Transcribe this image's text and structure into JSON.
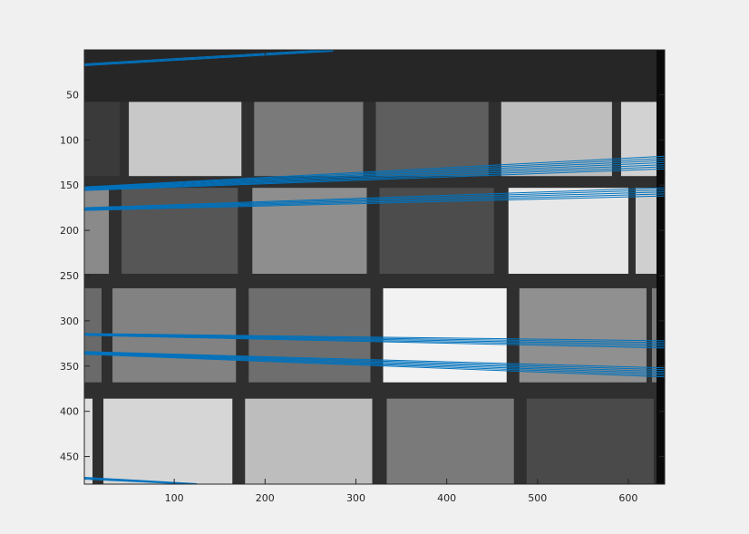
{
  "window": {
    "background": "#f0f0f0"
  },
  "chart_data": {
    "type": "image",
    "description_kind": "grayscale image with overlaid line segments",
    "xlim": [
      1,
      640
    ],
    "ylim": [
      0.5,
      480.5
    ],
    "y_reversed": true,
    "x_ticks": [
      100,
      200,
      300,
      400,
      500,
      600
    ],
    "x_tick_labels": [
      "100",
      "200",
      "300",
      "400",
      "500",
      "600"
    ],
    "y_ticks": [
      50,
      100,
      150,
      200,
      250,
      300,
      350,
      400,
      450
    ],
    "y_tick_labels": [
      "50",
      "100",
      "150",
      "200",
      "250",
      "300",
      "350",
      "400",
      "450"
    ],
    "line_color": "#0072bd",
    "image": {
      "top_band": {
        "y_range": [
          0,
          58
        ],
        "gray": "#262626"
      },
      "grid_background_gray": "#2f2f2f",
      "right_edge_bar": {
        "x_range": [
          631,
          640
        ],
        "gray": "#0a0a0a"
      },
      "patch_rows": [
        {
          "y_range": [
            58,
            140
          ],
          "patches": [
            {
              "x": [
                0,
                40
              ],
              "gray": "#3a3a3a"
            },
            {
              "x": [
                50,
                174
              ],
              "gray": "#c8c8c8"
            },
            {
              "x": [
                188,
                308
              ],
              "gray": "#7a7a7a"
            },
            {
              "x": [
                322,
                446
              ],
              "gray": "#5e5e5e"
            },
            {
              "x": [
                460,
                582
              ],
              "gray": "#bdbdbd"
            },
            {
              "x": [
                592,
                632
              ],
              "gray": "#d2d2d2"
            }
          ]
        },
        {
          "y_range": [
            153,
            248
          ],
          "patches": [
            {
              "x": [
                0,
                28
              ],
              "gray": "#8a8a8a"
            },
            {
              "x": [
                42,
                170
              ],
              "gray": "#565656"
            },
            {
              "x": [
                186,
                312
              ],
              "gray": "#8e8e8e"
            },
            {
              "x": [
                326,
                452
              ],
              "gray": "#4c4c4c"
            },
            {
              "x": [
                468,
                600
              ],
              "gray": "#e8e8e8"
            },
            {
              "x": [
                608,
                632
              ],
              "gray": "#cfcfcf"
            }
          ]
        },
        {
          "y_range": [
            264,
            368
          ],
          "patches": [
            {
              "x": [
                0,
                20
              ],
              "gray": "#6a6a6a"
            },
            {
              "x": [
                32,
                168
              ],
              "gray": "#828282"
            },
            {
              "x": [
                182,
                316
              ],
              "gray": "#6e6e6e"
            },
            {
              "x": [
                330,
                466
              ],
              "gray": "#f2f2f2"
            },
            {
              "x": [
                480,
                620
              ],
              "gray": "#909090"
            },
            {
              "x": [
                626,
                632
              ],
              "gray": "#7a7a7a"
            }
          ]
        },
        {
          "y_range": [
            386,
            480
          ],
          "patches": [
            {
              "x": [
                0,
                10
              ],
              "gray": "#dedede"
            },
            {
              "x": [
                22,
                164
              ],
              "gray": "#d6d6d6"
            },
            {
              "x": [
                178,
                318
              ],
              "gray": "#bdbdbd"
            },
            {
              "x": [
                334,
                474
              ],
              "gray": "#7a7a7a"
            },
            {
              "x": [
                488,
                628
              ],
              "gray": "#4a4a4a"
            }
          ]
        }
      ]
    },
    "line_groups": [
      {
        "x": [
          1,
          275
        ],
        "y_start": [
          16,
          18
        ],
        "y_end": [
          0,
          2
        ],
        "count": 3
      },
      {
        "x": [
          1,
          640
        ],
        "y_start": [
          152,
          156
        ],
        "y_end": [
          118,
          132
        ],
        "count": 7
      },
      {
        "x": [
          1,
          640
        ],
        "y_start": [
          175,
          178
        ],
        "y_end": [
          153,
          162
        ],
        "count": 5
      },
      {
        "x": [
          1,
          640
        ],
        "y_start": [
          314,
          316
        ],
        "y_end": [
          322,
          330
        ],
        "count": 5
      },
      {
        "x": [
          1,
          640
        ],
        "y_start": [
          334,
          337
        ],
        "y_end": [
          352,
          362
        ],
        "count": 6
      },
      {
        "x": [
          1,
          125
        ],
        "y_start": [
          473,
          475
        ],
        "y_end": [
          480,
          481
        ],
        "count": 3
      }
    ]
  }
}
